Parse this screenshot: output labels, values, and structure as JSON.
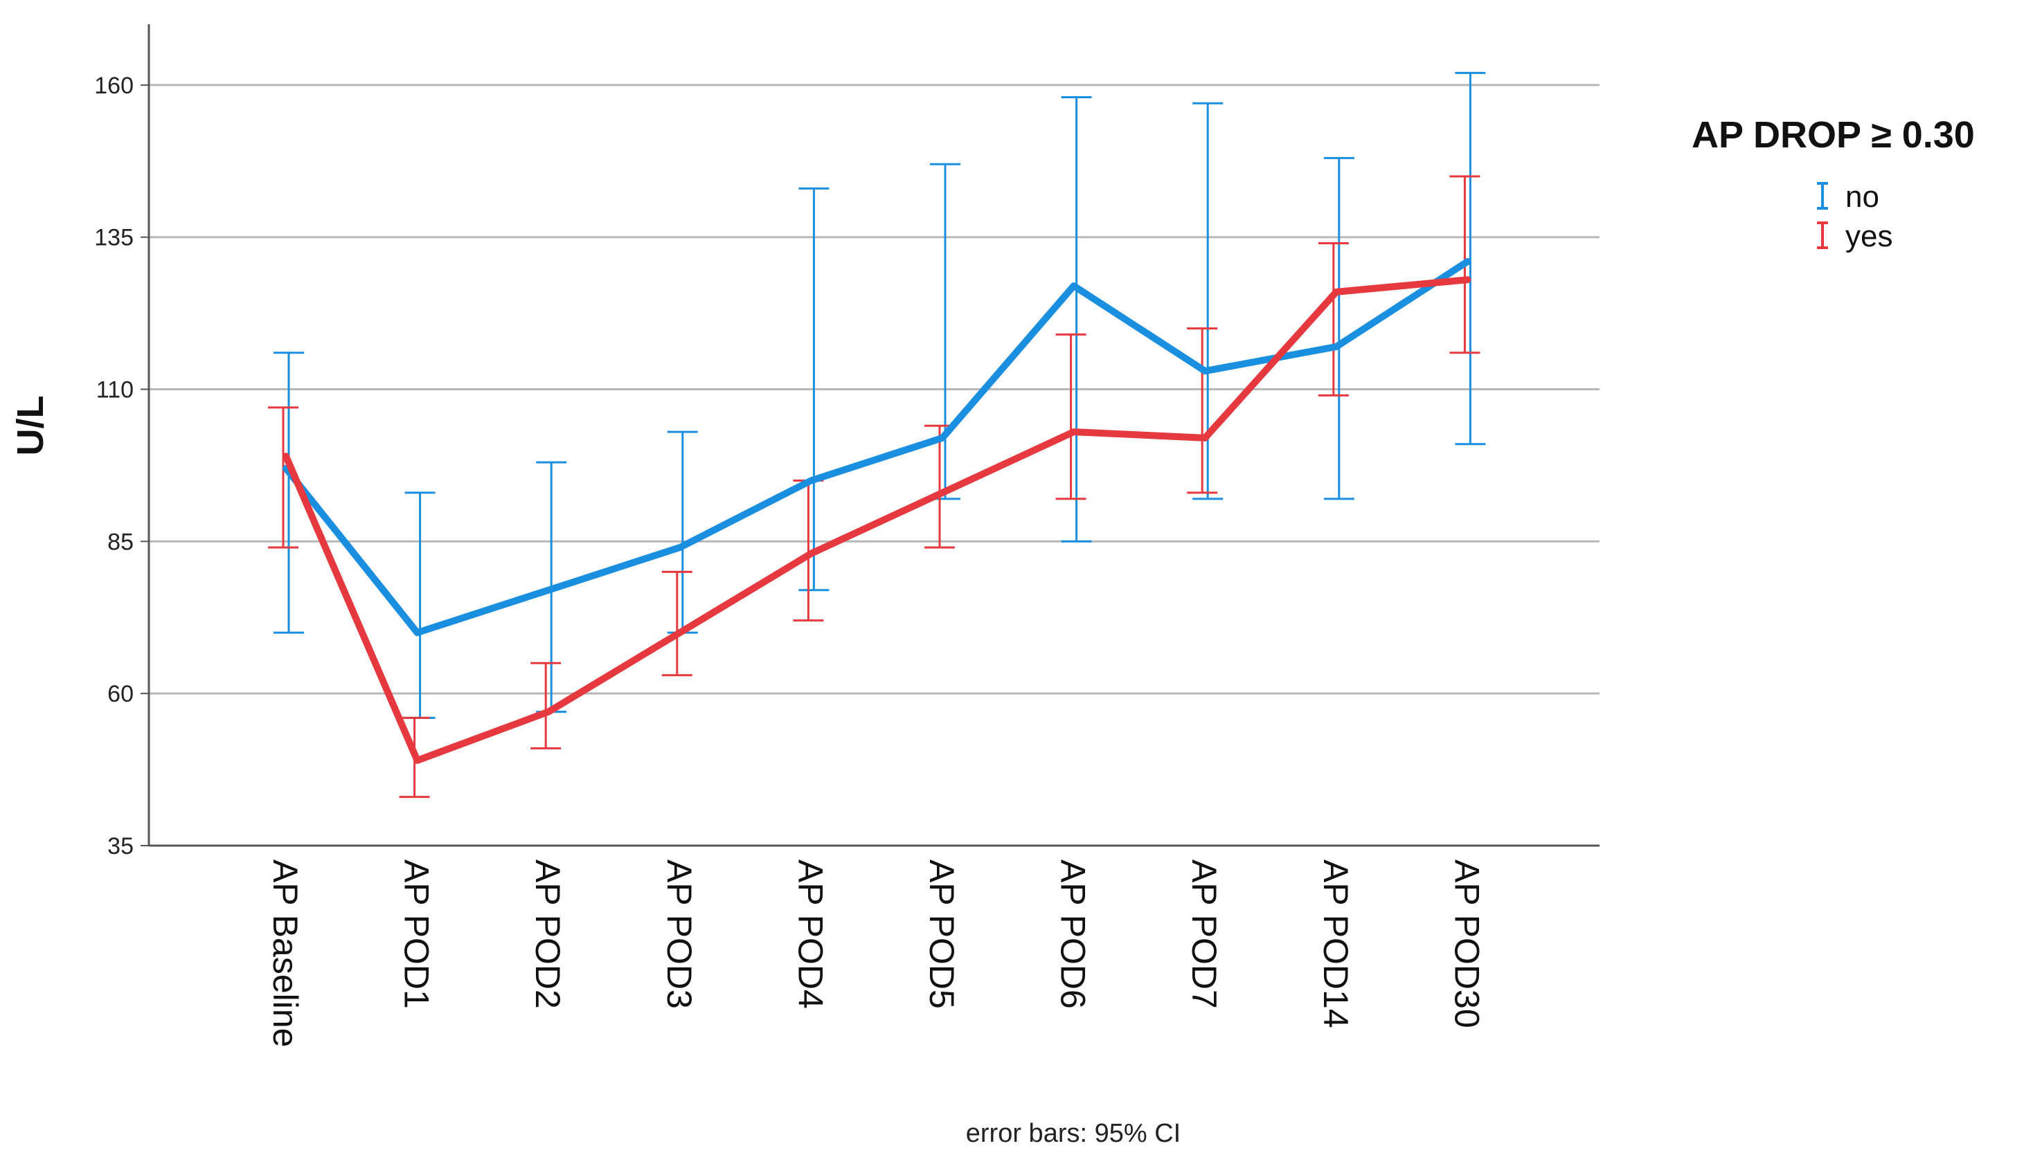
{
  "chart_data": {
    "type": "line",
    "categories": [
      "AP Baseline",
      "AP POD1",
      "AP POD2",
      "AP POD3",
      "AP POD4",
      "AP POD5",
      "AP POD6",
      "AP POD7",
      "AP POD14",
      "AP POD30"
    ],
    "ylabel": "U/L",
    "ylim": [
      35,
      170
    ],
    "yticks": [
      35,
      60,
      85,
      110,
      135,
      160
    ],
    "grid": "horizontal",
    "legend_title": "AP DROP ≥ 0.30",
    "legend_position": "right",
    "footnote": "error bars: 95% CI",
    "series": [
      {
        "name": "no",
        "color": "#1a8fe0",
        "values": [
          97,
          70,
          77,
          84,
          95,
          102,
          127,
          113,
          117,
          131
        ],
        "ci_low": [
          70,
          56,
          57,
          70,
          77,
          92,
          85,
          92,
          92,
          101
        ],
        "ci_high": [
          116,
          93,
          98,
          103,
          143,
          147,
          158,
          157,
          148,
          162
        ]
      },
      {
        "name": "yes",
        "color": "#e5393f",
        "values": [
          99,
          49,
          57,
          70,
          83,
          93,
          103,
          102,
          126,
          128
        ],
        "ci_low": [
          84,
          43,
          51,
          63,
          72,
          84,
          92,
          93,
          109,
          116
        ],
        "ci_high": [
          107,
          56,
          65,
          80,
          95,
          104,
          119,
          120,
          134,
          145
        ]
      }
    ]
  }
}
